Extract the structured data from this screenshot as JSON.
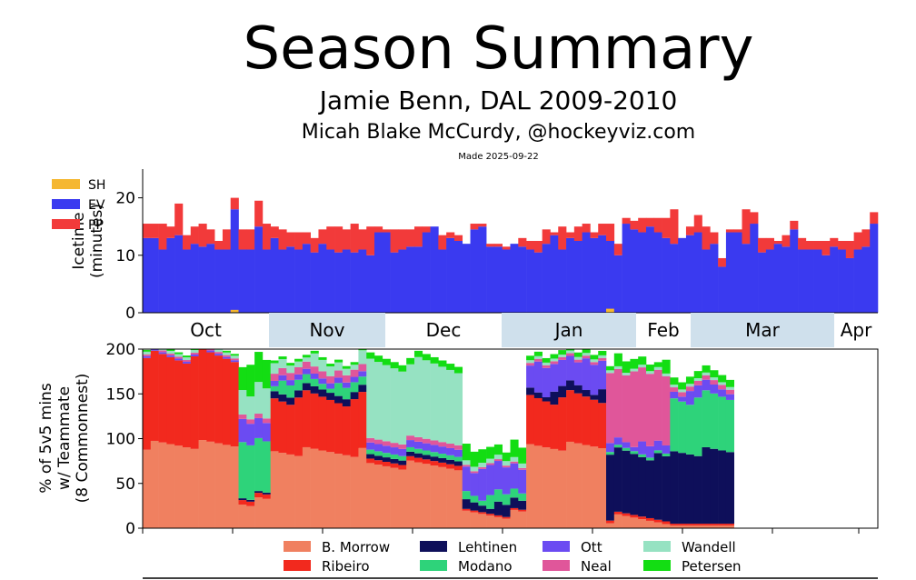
{
  "header": {
    "title": "Season Summary",
    "subtitle": "Jamie Benn, DAL 2009-2010",
    "author": "Micah Blake McCurdy, @hockeyviz.com",
    "made": "Made 2025-09-22"
  },
  "chart_data": [
    {
      "type": "bar",
      "stacked": true,
      "title": "",
      "ylabel": "Icetime (minutes)",
      "ylabel_lines": [
        "Icetime",
        "(minutes)"
      ],
      "ylim": [
        0,
        25
      ],
      "yticks": [
        0,
        10,
        20
      ],
      "legend": [
        {
          "name": "SH",
          "color": "#f5b731"
        },
        {
          "name": "EV",
          "color": "#3a3af0"
        },
        {
          "name": "PP",
          "color": "#f23a3a"
        }
      ],
      "series": [
        {
          "name": "EV",
          "values": [
            13,
            13,
            11,
            13,
            13.5,
            11,
            12,
            11.5,
            12,
            11,
            11,
            18,
            11,
            11,
            15,
            11,
            13,
            11,
            11.5,
            11,
            12,
            10.5,
            12,
            11,
            10.5,
            11,
            10.5,
            11,
            10,
            14,
            14,
            10.5,
            11,
            11.5,
            11.5,
            14,
            15,
            11,
            13,
            12.5,
            12,
            14.5,
            15,
            11.5,
            11.5,
            11,
            12,
            11.5,
            11,
            10.5,
            12,
            13.5,
            11,
            13,
            12.5,
            14,
            13,
            13.5,
            12.5,
            10,
            15.5,
            14.5,
            14,
            15,
            14,
            13,
            12,
            13,
            13.5,
            14,
            11,
            12,
            8,
            14,
            14,
            12,
            15.5,
            10.5,
            11,
            12,
            11.5,
            14.5,
            11,
            11,
            11,
            10,
            11.5,
            11,
            9.5,
            11,
            11.5,
            15.5
          ]
        },
        {
          "name": "PP",
          "values": [
            2.5,
            2.5,
            4.5,
            2,
            5.5,
            2.5,
            3,
            4,
            2.5,
            1.5,
            3.5,
            2,
            3.5,
            3.5,
            4.5,
            4.5,
            2,
            3.5,
            2.5,
            3,
            2,
            2.5,
            2.5,
            4,
            4.5,
            3.5,
            5,
            3.5,
            5,
            1,
            0.5,
            4,
            3.5,
            3,
            3.5,
            1,
            0,
            2.5,
            1,
            1,
            0,
            1,
            0.5,
            0.5,
            0.5,
            0.5,
            0,
            1.5,
            1.5,
            2,
            2.5,
            0.5,
            4,
            1,
            2.5,
            1.5,
            1,
            2,
            3,
            2,
            1,
            1.5,
            2.5,
            1.5,
            2.5,
            3.5,
            6,
            0,
            1.5,
            3,
            4,
            2,
            1.5,
            0.5,
            0.5,
            6,
            2,
            2.5,
            2,
            0.5,
            2,
            1.5,
            2,
            1.5,
            1.5,
            2.5,
            1.5,
            1.5,
            3,
            3,
            3,
            2
          ]
        },
        {
          "name": "SH",
          "values": [
            0,
            0,
            0,
            0,
            0,
            0,
            0,
            0,
            0,
            0,
            0,
            0.5,
            0,
            0,
            0,
            0,
            0,
            0,
            0,
            0,
            0,
            0,
            0,
            0,
            0,
            0,
            0,
            0,
            0,
            0,
            0,
            0,
            0,
            0,
            0,
            0,
            0,
            0,
            0,
            0,
            0,
            0,
            0,
            0,
            0,
            0,
            0,
            0,
            0,
            0,
            0,
            0,
            0,
            0,
            0,
            0,
            0,
            0,
            0.7,
            0,
            0,
            0,
            0,
            0,
            0,
            0,
            0,
            0,
            0,
            0,
            0,
            0,
            0,
            0,
            0,
            0,
            0,
            0,
            0,
            0,
            0,
            0,
            0,
            0,
            0,
            0,
            0,
            0,
            0,
            0,
            0,
            0
          ]
        }
      ]
    },
    {
      "type": "area",
      "stacked": true,
      "ylabel": "% of 5v5 mins w/ Teammate (8 Commonnest)",
      "ylabel_lines": [
        "% of 5v5 mins",
        "w/ Teammate",
        "(8 Commonnest)"
      ],
      "ylim": [
        0,
        200
      ],
      "yticks": [
        0,
        50,
        100,
        150,
        200
      ],
      "months": [
        "Oct",
        "Nov",
        "Dec",
        "Jan",
        "Feb",
        "Mar",
        "Apr"
      ],
      "legend": [
        {
          "name": "B. Morrow",
          "color": "#f08060"
        },
        {
          "name": "Ribeiro",
          "color": "#f2291e"
        },
        {
          "name": "Lehtinen",
          "color": "#0e0f5a"
        },
        {
          "name": "Modano",
          "color": "#2ed37a"
        },
        {
          "name": "Ott",
          "color": "#6b4bf2"
        },
        {
          "name": "Neal",
          "color": "#e0569a"
        },
        {
          "name": "Wandell",
          "color": "#96e2c2"
        },
        {
          "name": "Petersen",
          "color": "#13dd13"
        }
      ],
      "segments": [
        {
          "games": 12,
          "values": {
            "B. Morrow": 93,
            "Ribeiro": 98,
            "Lehtinen": 0,
            "Modano": 0,
            "Ott": 2,
            "Neal": 2,
            "Wandell": 3,
            "Petersen": 2
          }
        },
        {
          "games": 4,
          "values": {
            "B. Morrow": 30,
            "Ribeiro": 5,
            "Lehtinen": 2,
            "Modano": 60,
            "Ott": 25,
            "Neal": 5,
            "Wandell": 30,
            "Petersen": 30
          }
        },
        {
          "games": 12,
          "values": {
            "B. Morrow": 85,
            "Ribeiro": 60,
            "Lehtinen": 8,
            "Modano": 10,
            "Ott": 6,
            "Neal": 8,
            "Wandell": 10,
            "Petersen": 3
          }
        },
        {
          "games": 12,
          "values": {
            "B. Morrow": 70,
            "Ribeiro": 5,
            "Lehtinen": 5,
            "Modano": 5,
            "Ott": 8,
            "Neal": 5,
            "Wandell": 85,
            "Petersen": 7
          }
        },
        {
          "games": 8,
          "values": {
            "B. Morrow": 15,
            "Ribeiro": 2,
            "Lehtinen": 10,
            "Modano": 10,
            "Ott": 30,
            "Neal": 2,
            "Wandell": 5,
            "Petersen": 15
          }
        },
        {
          "games": 10,
          "values": {
            "B. Morrow": 92,
            "Ribeiro": 55,
            "Lehtinen": 10,
            "Modano": 0,
            "Ott": 30,
            "Neal": 3,
            "Wandell": 3,
            "Petersen": 5
          }
        },
        {
          "games": 8,
          "values": {
            "B. Morrow": 10,
            "Ribeiro": 3,
            "Lehtinen": 70,
            "Modano": 3,
            "Ott": 10,
            "Neal": 80,
            "Wandell": 3,
            "Petersen": 10
          }
        },
        {
          "games": 8,
          "values": {
            "B. Morrow": 3,
            "Ribeiro": 2,
            "Lehtinen": 80,
            "Modano": 60,
            "Ott": 10,
            "Neal": 5,
            "Wandell": 3,
            "Petersen": 8
          }
        }
      ]
    }
  ]
}
